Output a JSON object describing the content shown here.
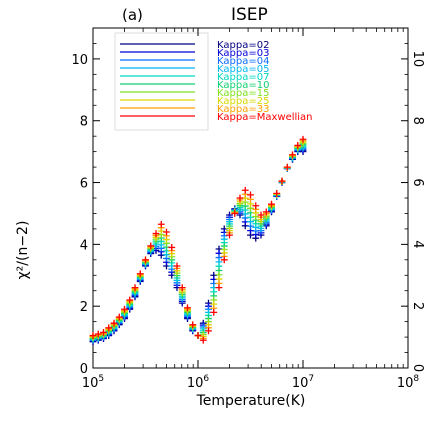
{
  "chart_data": {
    "type": "scatter",
    "title": "ISEP",
    "panel_label": "(a)",
    "xlabel": "Temperature(K)",
    "ylabel": "χ²/(n−2)",
    "xscale": "log",
    "xlim": [
      100000,
      100000000
    ],
    "ylim": [
      0,
      11
    ],
    "x_ticks": [
      {
        "value": 100000,
        "base": "10",
        "exp": "5"
      },
      {
        "value": 1000000,
        "base": "10",
        "exp": "6"
      },
      {
        "value": 10000000,
        "base": "10",
        "exp": "7"
      },
      {
        "value": 100000000,
        "base": "10",
        "exp": "8"
      }
    ],
    "y_ticks": [
      0,
      2,
      4,
      6,
      8,
      10
    ],
    "legend_position": "top-left",
    "grid": false,
    "mirror_labels": true,
    "series": [
      {
        "name": "Kappa=02",
        "color": "#000080"
      },
      {
        "name": "Kappa=03",
        "color": "#0000d8"
      },
      {
        "name": "Kappa=04",
        "color": "#0a6cff"
      },
      {
        "name": "Kappa=05",
        "color": "#00b8f0"
      },
      {
        "name": "Kappa=07",
        "color": "#00d8c0"
      },
      {
        "name": "Kappa=10",
        "color": "#10d070"
      },
      {
        "name": "Kappa=15",
        "color": "#80e020"
      },
      {
        "name": "Kappa=25",
        "color": "#d8d800"
      },
      {
        "name": "Kappa=33",
        "color": "#ffa000"
      },
      {
        "name": "Kappa=Maxwellian",
        "color": "#ff0000"
      }
    ],
    "curve_maxwellian": [
      [
        5.0,
        1.05
      ],
      [
        5.05,
        1.1
      ],
      [
        5.1,
        1.15
      ],
      [
        5.15,
        1.3
      ],
      [
        5.2,
        1.45
      ],
      [
        5.25,
        1.65
      ],
      [
        5.3,
        1.9
      ],
      [
        5.35,
        2.2
      ],
      [
        5.4,
        2.6
      ],
      [
        5.45,
        3.05
      ],
      [
        5.5,
        3.5
      ],
      [
        5.55,
        3.95
      ],
      [
        5.6,
        4.35
      ],
      [
        5.65,
        4.65
      ],
      [
        5.7,
        4.4
      ],
      [
        5.75,
        3.9
      ],
      [
        5.8,
        3.3
      ],
      [
        5.85,
        2.6
      ],
      [
        5.9,
        1.95
      ],
      [
        5.95,
        1.4
      ],
      [
        6.0,
        1.05
      ],
      [
        6.05,
        0.9
      ],
      [
        6.1,
        1.2
      ],
      [
        6.15,
        1.8
      ],
      [
        6.2,
        2.6
      ],
      [
        6.25,
        3.5
      ],
      [
        6.3,
        4.3
      ],
      [
        6.35,
        5.0
      ],
      [
        6.4,
        5.5
      ],
      [
        6.45,
        5.75
      ],
      [
        6.5,
        5.6
      ],
      [
        6.55,
        5.25
      ],
      [
        6.6,
        4.95
      ],
      [
        6.65,
        5.05
      ],
      [
        6.7,
        5.3
      ],
      [
        6.75,
        5.65
      ],
      [
        6.8,
        6.05
      ],
      [
        6.85,
        6.5
      ],
      [
        6.9,
        6.9
      ],
      [
        6.95,
        7.2
      ],
      [
        7.0,
        7.4
      ]
    ],
    "curve_kappa02": [
      [
        5.0,
        0.85
      ],
      [
        5.05,
        0.9
      ],
      [
        5.1,
        0.95
      ],
      [
        5.15,
        1.05
      ],
      [
        5.2,
        1.2
      ],
      [
        5.25,
        1.4
      ],
      [
        5.3,
        1.6
      ],
      [
        5.35,
        1.9
      ],
      [
        5.4,
        2.3
      ],
      [
        5.45,
        2.8
      ],
      [
        5.5,
        3.3
      ],
      [
        5.55,
        3.7
      ],
      [
        5.6,
        3.8
      ],
      [
        5.65,
        3.65
      ],
      [
        5.7,
        3.3
      ],
      [
        5.75,
        3.0
      ],
      [
        5.8,
        2.6
      ],
      [
        5.85,
        2.1
      ],
      [
        5.9,
        1.6
      ],
      [
        5.95,
        1.2
      ],
      [
        6.0,
        1.05
      ],
      [
        6.05,
        1.45
      ],
      [
        6.1,
        2.1
      ],
      [
        6.15,
        3.0
      ],
      [
        6.2,
        3.85
      ],
      [
        6.25,
        4.5
      ],
      [
        6.3,
        4.95
      ],
      [
        6.35,
        5.15
      ],
      [
        6.4,
        4.95
      ],
      [
        6.45,
        4.6
      ],
      [
        6.5,
        4.3
      ],
      [
        6.55,
        4.2
      ],
      [
        6.6,
        4.3
      ],
      [
        6.65,
        4.6
      ],
      [
        6.7,
        5.05
      ],
      [
        6.75,
        5.55
      ],
      [
        6.8,
        6.0
      ],
      [
        6.85,
        6.45
      ],
      [
        6.9,
        6.75
      ],
      [
        6.95,
        7.0
      ]
    ]
  }
}
